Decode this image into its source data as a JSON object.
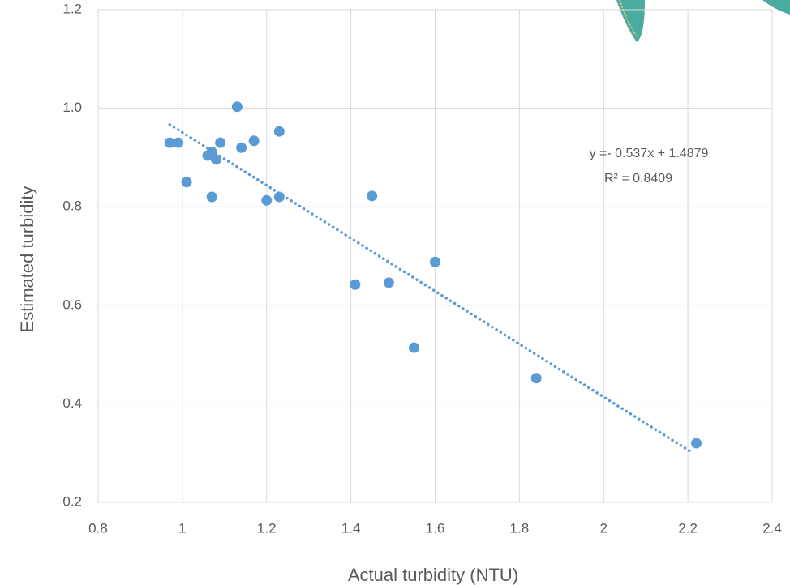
{
  "chart_data": {
    "type": "scatter",
    "x_label": "Actual turbidity (NTU)",
    "y_label": "Estimated turbidity",
    "x": [
      0.97,
      0.99,
      1.01,
      1.06,
      1.07,
      1.08,
      1.07,
      1.09,
      1.13,
      1.14,
      1.17,
      1.2,
      1.23,
      1.23,
      1.41,
      1.45,
      1.49,
      1.55,
      1.6,
      1.84,
      2.22
    ],
    "values": [
      0.93,
      0.93,
      0.85,
      0.904,
      0.911,
      0.896,
      0.82,
      0.93,
      1.003,
      0.92,
      0.934,
      0.813,
      0.953,
      0.82,
      0.642,
      0.822,
      0.646,
      0.514,
      0.688,
      0.452,
      0.32
    ],
    "color": "#5b9bd5",
    "xlim": [
      0.8,
      2.4
    ],
    "xticks": [
      0.8,
      1,
      1.2,
      1.4,
      1.6,
      1.8,
      2,
      2.2,
      2.4
    ],
    "ylim": [
      0.2,
      1.2
    ],
    "yticks": [
      0.2,
      0.4,
      0.6,
      0.8,
      {
        "value": 1,
        "label": "1.0"
      },
      1.2
    ],
    "grid": true,
    "trendline": {
      "slope": -0.537,
      "intercept": 1.4879,
      "x_range": [
        0.97,
        2.21
      ],
      "labels": [
        "y =-  0.537x + 1.4879",
        "R² = 0.8409"
      ]
    }
  }
}
